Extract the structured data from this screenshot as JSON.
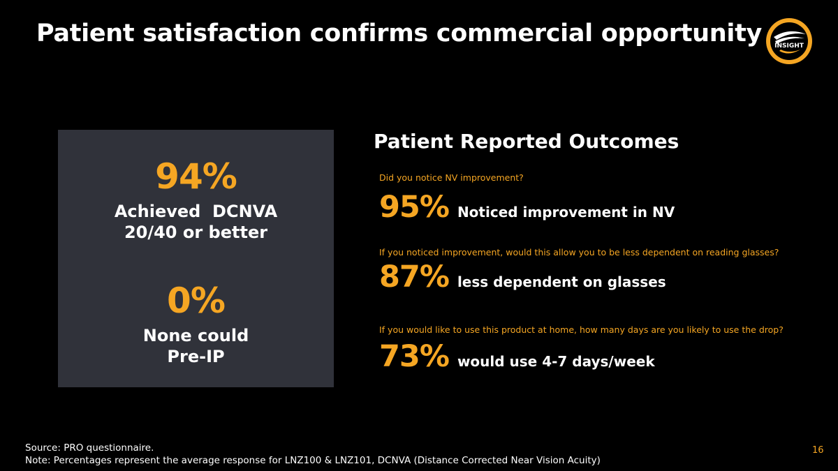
{
  "slide": {
    "title": "Patient satisfaction confirms commercial opportunity",
    "logo_text": "INSIGHT",
    "page_number": "16"
  },
  "left_panel": {
    "stats": [
      {
        "value": "94%",
        "label_line1": "Achieved  DCNVA",
        "label_line2": "20/40 or better"
      },
      {
        "value": "0%",
        "label_line1": "None could",
        "label_line2": "Pre-IP"
      }
    ]
  },
  "pro": {
    "title": "Patient Reported Outcomes",
    "items": [
      {
        "question": "Did you notice NV improvement?",
        "percent": "95%",
        "answer": "Noticed improvement in NV"
      },
      {
        "question": "If you noticed improvement, would this allow you to be less dependent on reading glasses?",
        "percent": "87%",
        "answer": "less dependent on glasses"
      },
      {
        "question": "If you would like to use this product at home, how many days are you likely to use the drop?",
        "percent": "73%",
        "answer": "would use 4-7 days/week"
      }
    ]
  },
  "footer": {
    "source": "Source: PRO questionnaire.",
    "note": "Note: Percentages represent the average response for LNZ100 & LNZ101, DCNVA (Distance Corrected Near Vision Acuity)"
  },
  "colors": {
    "accent": "#f5a623",
    "background": "#000000",
    "panel": "#30323a",
    "text": "#ffffff"
  }
}
